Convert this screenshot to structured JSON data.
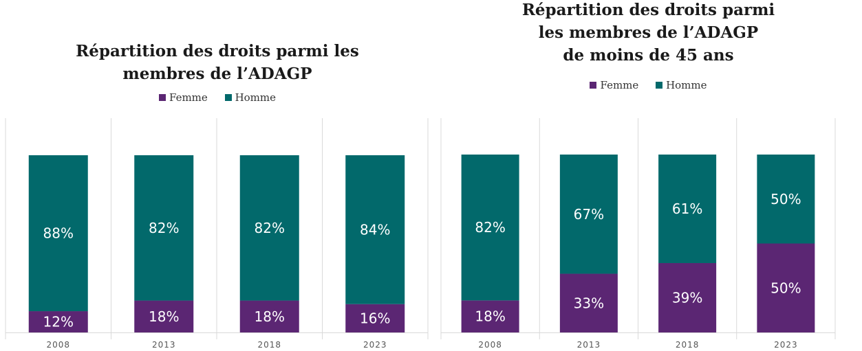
{
  "chart_data": [
    {
      "type": "bar",
      "stacked": true,
      "title_lines": [
        "Répartition des droits parmi les",
        "membres de l’ADAGP"
      ],
      "categories": [
        "2008",
        "2013",
        "2018",
        "2023"
      ],
      "series": [
        {
          "name": "Femme",
          "color": "#5b2673",
          "values": [
            12,
            18,
            18,
            16
          ]
        },
        {
          "name": "Homme",
          "color": "#02696b",
          "values": [
            88,
            82,
            82,
            84
          ]
        }
      ],
      "data_labels": {
        "Femme": [
          "12%",
          "18%",
          "18%",
          "16%"
        ],
        "Homme": [
          "88%",
          "82%",
          "82%",
          "84%"
        ]
      },
      "ylim": [
        0,
        100
      ],
      "grid": false,
      "legend_position": "top"
    },
    {
      "type": "bar",
      "stacked": true,
      "title_lines": [
        "Répartition des droits parmi",
        "les membres de l’ADAGP",
        "de moins de 45 ans"
      ],
      "categories": [
        "2008",
        "2013",
        "2018",
        "2023"
      ],
      "series": [
        {
          "name": "Femme",
          "color": "#5b2673",
          "values": [
            18,
            33,
            39,
            50
          ]
        },
        {
          "name": "Homme",
          "color": "#02696b",
          "values": [
            82,
            67,
            61,
            50
          ]
        }
      ],
      "data_labels": {
        "Femme": [
          "18%",
          "33%",
          "39%",
          "50%"
        ],
        "Homme": [
          "82%",
          "67%",
          "61%",
          "50%"
        ]
      },
      "ylim": [
        0,
        100
      ],
      "grid": false,
      "legend_position": "top"
    }
  ]
}
